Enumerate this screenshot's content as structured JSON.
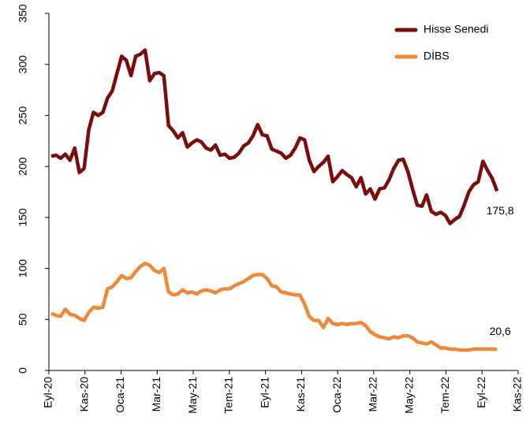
{
  "chart_data": {
    "type": "line",
    "x": [
      0.13,
      0.39,
      0.65,
      0.91,
      1.17,
      1.43,
      1.69,
      1.95,
      2.21,
      2.47,
      2.73,
      2.99,
      3.25,
      3.51,
      3.77,
      4.03,
      4.29,
      4.55,
      4.81,
      5.07,
      5.33,
      5.59,
      5.85,
      6.11,
      6.37,
      6.63,
      6.89,
      7.15,
      7.41,
      7.67,
      7.93,
      8.19,
      8.45,
      8.71,
      8.97,
      9.23,
      9.49,
      9.75,
      10.01,
      10.27,
      10.53,
      10.79,
      11.05,
      11.31,
      11.57,
      11.83,
      12.09,
      12.35,
      12.61,
      12.87,
      13.13,
      13.39,
      13.65,
      13.91,
      14.17,
      14.43,
      14.69,
      14.95,
      15.21,
      15.47,
      15.73,
      15.99,
      16.25,
      16.51,
      16.77,
      17.03,
      17.29,
      17.55,
      17.81,
      18.07,
      18.33,
      18.59,
      18.85,
      19.11,
      19.37,
      19.63,
      19.89,
      20.15,
      20.41,
      20.67,
      20.93,
      21.19,
      21.45,
      21.71,
      21.97,
      22.23,
      22.49,
      22.75,
      23.01,
      23.27,
      23.53,
      23.79,
      24.05,
      24.31,
      24.57,
      24.83
    ],
    "series": [
      {
        "name": "Hisse Senedi",
        "color": "#7b0c0c",
        "values": [
          210,
          211,
          208,
          212,
          206,
          218,
          194,
          198,
          236,
          253,
          250,
          253,
          267,
          274,
          291,
          308,
          304,
          289,
          308,
          310,
          314,
          284,
          291,
          292,
          289,
          240,
          235,
          228,
          233,
          219,
          223,
          226,
          224,
          218,
          216,
          221,
          211,
          212,
          208,
          209,
          213,
          220,
          223,
          230,
          241,
          231,
          230,
          217,
          215,
          213,
          208,
          211,
          218,
          228,
          226,
          206,
          195,
          200,
          204,
          210,
          185,
          190,
          196,
          192,
          189,
          180,
          189,
          173,
          178,
          168,
          178,
          179,
          187,
          198,
          206,
          207,
          195,
          178,
          162,
          161,
          172,
          156,
          153,
          155,
          152,
          144,
          148,
          151,
          162,
          175,
          182,
          185,
          205,
          196,
          188,
          175.8
        ],
        "value_labels": {
          "95": "175,8"
        }
      },
      {
        "name": "DİBS",
        "color": "#f0883a",
        "values": [
          56,
          54,
          53,
          60,
          55,
          54,
          51,
          49,
          57,
          62,
          61,
          62,
          80,
          82,
          87,
          93,
          90,
          91,
          97,
          102,
          105,
          103,
          98,
          96,
          100,
          77,
          74,
          75,
          79,
          76,
          77,
          75,
          78,
          79,
          78,
          76,
          79,
          80,
          80,
          83,
          85,
          87,
          90,
          93,
          94,
          94,
          90,
          83,
          82,
          77,
          76,
          75,
          74,
          74,
          65,
          53,
          49,
          49,
          42,
          51,
          46,
          45,
          46,
          45,
          46,
          46,
          47,
          44,
          38,
          35,
          33,
          32,
          31,
          33,
          32,
          34,
          34,
          32,
          28,
          27,
          26,
          28,
          25,
          22,
          22,
          21,
          21,
          20,
          20,
          20,
          21,
          21,
          21,
          21,
          21,
          20.6
        ],
        "value_labels": {
          "95": "20,6"
        }
      }
    ],
    "xlim": [
      0,
      26
    ],
    "xticks": [
      {
        "value": 0,
        "label": "Eyl-20"
      },
      {
        "value": 2,
        "label": "Kas-20"
      },
      {
        "value": 4,
        "label": "Oca-21"
      },
      {
        "value": 6,
        "label": "Mar-21"
      },
      {
        "value": 8,
        "label": "May-21"
      },
      {
        "value": 10,
        "label": "Tem-21"
      },
      {
        "value": 12,
        "label": "Eyl-21"
      },
      {
        "value": 14,
        "label": "Kas-21"
      },
      {
        "value": 16,
        "label": "Oca-22"
      },
      {
        "value": 18,
        "label": "Mar-22"
      },
      {
        "value": 20,
        "label": "May-22"
      },
      {
        "value": 22,
        "label": "Tem-22"
      },
      {
        "value": 24,
        "label": "Eyl-22"
      },
      {
        "value": 26,
        "label": "Kas-22"
      }
    ],
    "ylim": [
      0,
      350
    ],
    "yticks": [
      0,
      50,
      100,
      150,
      200,
      250,
      300,
      350
    ],
    "grid": false,
    "legend": "top-right"
  }
}
